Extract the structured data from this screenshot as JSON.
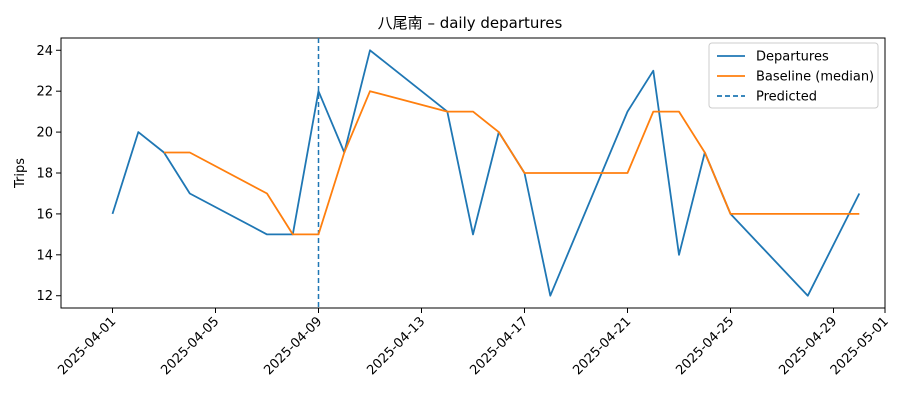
{
  "chart_data": {
    "type": "line",
    "title": "八尾南 – daily departures",
    "xlabel": "",
    "ylabel": "Trips",
    "x_domain": [
      "2025-03-30",
      "2025-05-01"
    ],
    "ylim": [
      11.4,
      24.6
    ],
    "y_ticks": [
      12,
      14,
      16,
      18,
      20,
      22,
      24
    ],
    "x_ticks": [
      "2025-04-01",
      "2025-04-05",
      "2025-04-09",
      "2025-04-13",
      "2025-04-17",
      "2025-04-21",
      "2025-04-25",
      "2025-04-29",
      "2025-05-01"
    ],
    "grid": false,
    "legend_position": "top-right",
    "series": [
      {
        "name": "Departures",
        "color": "#1f77b4",
        "style": "solid",
        "points": [
          [
            "2025-04-01",
            16
          ],
          [
            "2025-04-02",
            20
          ],
          [
            "2025-04-03",
            19
          ],
          [
            "2025-04-04",
            17
          ],
          [
            "2025-04-07",
            15
          ],
          [
            "2025-04-08",
            15
          ],
          [
            "2025-04-09",
            22
          ],
          [
            "2025-04-10",
            19
          ],
          [
            "2025-04-11",
            24
          ],
          [
            "2025-04-14",
            21
          ],
          [
            "2025-04-15",
            15
          ],
          [
            "2025-04-16",
            20
          ],
          [
            "2025-04-17",
            18
          ],
          [
            "2025-04-18",
            12
          ],
          [
            "2025-04-21",
            21
          ],
          [
            "2025-04-22",
            23
          ],
          [
            "2025-04-23",
            14
          ],
          [
            "2025-04-24",
            19
          ],
          [
            "2025-04-25",
            16
          ],
          [
            "2025-04-28",
            12
          ],
          [
            "2025-04-30",
            17
          ]
        ]
      },
      {
        "name": "Baseline (median)",
        "color": "#ff7f0e",
        "style": "solid",
        "points": [
          [
            "2025-04-03",
            19
          ],
          [
            "2025-04-04",
            19
          ],
          [
            "2025-04-07",
            17
          ],
          [
            "2025-04-08",
            15
          ],
          [
            "2025-04-09",
            15
          ],
          [
            "2025-04-10",
            19
          ],
          [
            "2025-04-11",
            22
          ],
          [
            "2025-04-14",
            21
          ],
          [
            "2025-04-15",
            21
          ],
          [
            "2025-04-16",
            20
          ],
          [
            "2025-04-17",
            18
          ],
          [
            "2025-04-18",
            18
          ],
          [
            "2025-04-21",
            18
          ],
          [
            "2025-04-22",
            21
          ],
          [
            "2025-04-23",
            21
          ],
          [
            "2025-04-24",
            19
          ],
          [
            "2025-04-25",
            16
          ],
          [
            "2025-04-28",
            16
          ],
          [
            "2025-04-30",
            16
          ]
        ]
      }
    ],
    "vline": {
      "name": "Predicted",
      "x": "2025-04-09",
      "color": "#1f77b4",
      "style": "dashed"
    }
  }
}
